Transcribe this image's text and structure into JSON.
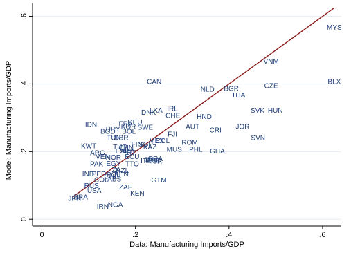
{
  "chart_data": {
    "type": "scatter",
    "title": "",
    "xlabel": "Data: Manufacturing Imports/GDP",
    "ylabel": "Model: Manufacturing Imports/GDP",
    "xlim": [
      -0.02,
      0.64
    ],
    "ylim": [
      -0.02,
      0.64
    ],
    "xticks": [
      {
        "value": 0,
        "label": "0"
      },
      {
        "value": 0.2,
        "label": ".2"
      },
      {
        "value": 0.4,
        "label": ".4"
      },
      {
        "value": 0.6,
        "label": ".6"
      }
    ],
    "yticks": [
      {
        "value": 0,
        "label": "0"
      },
      {
        "value": 0.2,
        "label": ".2"
      },
      {
        "value": 0.4,
        "label": ".4"
      },
      {
        "value": 0.6,
        "label": ".6"
      }
    ],
    "grid": true,
    "label_color": "#1f3f77",
    "line_color": "#8b1a1a",
    "fit_line": {
      "x": [
        0.065,
        0.625
      ],
      "y": [
        0.065,
        0.625
      ]
    },
    "points": [
      {
        "label": "MYS",
        "x": 0.625,
        "y": 0.565
      },
      {
        "label": "BLX",
        "x": 0.625,
        "y": 0.405
      },
      {
        "label": "VNM",
        "x": 0.49,
        "y": 0.465
      },
      {
        "label": "CZE",
        "x": 0.49,
        "y": 0.393
      },
      {
        "label": "CAN",
        "x": 0.24,
        "y": 0.405
      },
      {
        "label": "NLD",
        "x": 0.354,
        "y": 0.383
      },
      {
        "label": "BGR",
        "x": 0.405,
        "y": 0.385
      },
      {
        "label": "THA",
        "x": 0.42,
        "y": 0.365
      },
      {
        "label": "SVK",
        "x": 0.461,
        "y": 0.32
      },
      {
        "label": "HUN",
        "x": 0.499,
        "y": 0.32
      },
      {
        "label": "IRL",
        "x": 0.279,
        "y": 0.325
      },
      {
        "label": "LKA",
        "x": 0.244,
        "y": 0.32
      },
      {
        "label": "DNK",
        "x": 0.228,
        "y": 0.314
      },
      {
        "label": "CHE",
        "x": 0.28,
        "y": 0.305
      },
      {
        "label": "HND",
        "x": 0.347,
        "y": 0.302
      },
      {
        "label": "IDN",
        "x": 0.105,
        "y": 0.278
      },
      {
        "label": "FRA",
        "x": 0.179,
        "y": 0.28
      },
      {
        "label": "DEU",
        "x": 0.199,
        "y": 0.285
      },
      {
        "label": "KOR",
        "x": 0.185,
        "y": 0.272
      },
      {
        "label": "SWE",
        "x": 0.221,
        "y": 0.27
      },
      {
        "label": "AUT",
        "x": 0.322,
        "y": 0.272
      },
      {
        "label": "JOR",
        "x": 0.429,
        "y": 0.272
      },
      {
        "label": "URY",
        "x": 0.152,
        "y": 0.265
      },
      {
        "label": "BGD",
        "x": 0.141,
        "y": 0.258
      },
      {
        "label": "BOL",
        "x": 0.186,
        "y": 0.258
      },
      {
        "label": "CRI",
        "x": 0.371,
        "y": 0.262
      },
      {
        "label": "FJI",
        "x": 0.279,
        "y": 0.25
      },
      {
        "label": "TUN",
        "x": 0.154,
        "y": 0.24
      },
      {
        "label": "GBR",
        "x": 0.169,
        "y": 0.24
      },
      {
        "label": "SVN",
        "x": 0.462,
        "y": 0.24
      },
      {
        "label": "MEX",
        "x": 0.245,
        "y": 0.23
      },
      {
        "label": "COL",
        "x": 0.258,
        "y": 0.23
      },
      {
        "label": "ROM",
        "x": 0.316,
        "y": 0.225
      },
      {
        "label": "FIN",
        "x": 0.203,
        "y": 0.22
      },
      {
        "label": "SGP",
        "x": 0.222,
        "y": 0.22
      },
      {
        "label": "KWT",
        "x": 0.1,
        "y": 0.215
      },
      {
        "label": "TUR",
        "x": 0.167,
        "y": 0.212
      },
      {
        "label": "CHN",
        "x": 0.18,
        "y": 0.21
      },
      {
        "label": "KAZ",
        "x": 0.231,
        "y": 0.212
      },
      {
        "label": "MUS",
        "x": 0.283,
        "y": 0.205
      },
      {
        "label": "PHL",
        "x": 0.329,
        "y": 0.205
      },
      {
        "label": "GHA",
        "x": 0.375,
        "y": 0.2
      },
      {
        "label": "ARG",
        "x": 0.119,
        "y": 0.195
      },
      {
        "label": "ESP",
        "x": 0.172,
        "y": 0.2
      },
      {
        "label": "AUS",
        "x": 0.183,
        "y": 0.2
      },
      {
        "label": "PRT",
        "x": 0.186,
        "y": 0.196
      },
      {
        "label": "VEN",
        "x": 0.13,
        "y": 0.183
      },
      {
        "label": "NOR",
        "x": 0.153,
        "y": 0.181
      },
      {
        "label": "ECU",
        "x": 0.193,
        "y": 0.183
      },
      {
        "label": "PAK",
        "x": 0.117,
        "y": 0.162
      },
      {
        "label": "EGY",
        "x": 0.153,
        "y": 0.163
      },
      {
        "label": "TTO",
        "x": 0.193,
        "y": 0.162
      },
      {
        "label": "ITA",
        "x": 0.222,
        "y": 0.171
      },
      {
        "label": "JPN",
        "x": 0.232,
        "y": 0.174
      },
      {
        "label": "GRC",
        "x": 0.238,
        "y": 0.172
      },
      {
        "label": "ISR",
        "x": 0.245,
        "y": 0.17
      },
      {
        "label": "BRA",
        "x": 0.243,
        "y": 0.177
      },
      {
        "label": "ZA",
        "x": 0.159,
        "y": 0.145
      },
      {
        "label": "NZL",
        "x": 0.172,
        "y": 0.142
      },
      {
        "label": "IND",
        "x": 0.099,
        "y": 0.132
      },
      {
        "label": "PER",
        "x": 0.122,
        "y": 0.132
      },
      {
        "label": "GTM",
        "x": 0.25,
        "y": 0.114
      },
      {
        "label": "POL",
        "x": 0.153,
        "y": 0.13
      },
      {
        "label": "CHL",
        "x": 0.148,
        "y": 0.125
      },
      {
        "label": "KEN",
        "x": 0.17,
        "y": 0.132
      },
      {
        "label": "COL",
        "x": 0.127,
        "y": 0.115
      },
      {
        "label": "ABS",
        "x": 0.155,
        "y": 0.117
      },
      {
        "label": "RUS",
        "x": 0.106,
        "y": 0.098
      },
      {
        "label": "ZAF",
        "x": 0.179,
        "y": 0.093
      },
      {
        "label": "USA",
        "x": 0.112,
        "y": 0.083
      },
      {
        "label": "KEN",
        "x": 0.204,
        "y": 0.075
      },
      {
        "label": "JPN",
        "x": 0.07,
        "y": 0.06
      },
      {
        "label": "BRA",
        "x": 0.083,
        "y": 0.064
      },
      {
        "label": "NGA",
        "x": 0.157,
        "y": 0.041
      },
      {
        "label": "IRN",
        "x": 0.13,
        "y": 0.036
      }
    ]
  }
}
